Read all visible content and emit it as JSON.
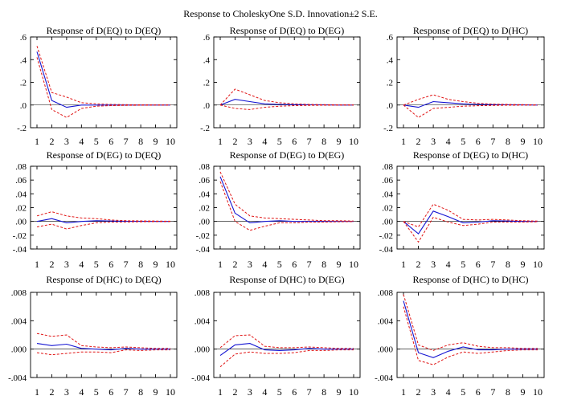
{
  "figure": {
    "title": "Response to CholeskyOne S.D. Innovation±2 S.E."
  },
  "colors": {
    "response": "#1414d2",
    "bands": "#e01414",
    "axis": "#000000",
    "background": "#ffffff"
  },
  "chart_data": [
    {
      "type": "line",
      "title": "Response of D(EQ) to D(EQ)",
      "x": [
        1,
        2,
        3,
        4,
        5,
        6,
        7,
        8,
        9,
        10
      ],
      "ylim": [
        -0.2,
        0.6
      ],
      "yticks": [
        -0.2,
        0.0,
        0.2,
        0.4,
        0.6
      ],
      "ytick_labels": [
        "-.2",
        ".0",
        ".2",
        ".4",
        ".6"
      ],
      "series": [
        {
          "role": "response",
          "values": [
            0.47,
            0.04,
            -0.02,
            0.0,
            0.0,
            0.0,
            0.0,
            0.0,
            0.0,
            0.0
          ]
        },
        {
          "role": "upper",
          "values": [
            0.52,
            0.11,
            0.07,
            0.02,
            0.01,
            0.005,
            0.003,
            0.002,
            0.001,
            0.001
          ]
        },
        {
          "role": "lower",
          "values": [
            0.42,
            -0.04,
            -0.11,
            -0.03,
            -0.01,
            -0.005,
            -0.003,
            -0.002,
            -0.001,
            -0.001
          ]
        }
      ]
    },
    {
      "type": "line",
      "title": "Response of D(EQ) to D(EG)",
      "x": [
        1,
        2,
        3,
        4,
        5,
        6,
        7,
        8,
        9,
        10
      ],
      "ylim": [
        -0.2,
        0.6
      ],
      "yticks": [
        -0.2,
        0.0,
        0.2,
        0.4,
        0.6
      ],
      "ytick_labels": [
        "-.2",
        ".0",
        ".2",
        ".4",
        ".6"
      ],
      "series": [
        {
          "role": "response",
          "values": [
            0.0,
            0.05,
            0.03,
            0.01,
            0.005,
            0.003,
            0.002,
            0.001,
            0.0,
            0.0
          ]
        },
        {
          "role": "upper",
          "values": [
            0.0,
            0.14,
            0.09,
            0.04,
            0.02,
            0.01,
            0.005,
            0.003,
            0.002,
            0.001
          ]
        },
        {
          "role": "lower",
          "values": [
            0.0,
            -0.03,
            -0.04,
            -0.02,
            -0.01,
            -0.005,
            -0.003,
            -0.002,
            -0.001,
            -0.001
          ]
        }
      ]
    },
    {
      "type": "line",
      "title": "Response of D(EQ) to D(HC)",
      "x": [
        1,
        2,
        3,
        4,
        5,
        6,
        7,
        8,
        9,
        10
      ],
      "ylim": [
        -0.2,
        0.6
      ],
      "yticks": [
        -0.2,
        0.0,
        0.2,
        0.4,
        0.6
      ],
      "ytick_labels": [
        "-.2",
        ".0",
        ".2",
        ".4",
        ".6"
      ],
      "series": [
        {
          "role": "response",
          "values": [
            0.0,
            -0.02,
            0.03,
            0.02,
            0.01,
            0.005,
            0.003,
            0.002,
            0.001,
            0.0
          ]
        },
        {
          "role": "upper",
          "values": [
            0.0,
            0.05,
            0.09,
            0.05,
            0.03,
            0.015,
            0.008,
            0.005,
            0.003,
            0.002
          ]
        },
        {
          "role": "lower",
          "values": [
            0.0,
            -0.11,
            -0.03,
            -0.02,
            -0.01,
            -0.006,
            -0.004,
            -0.002,
            -0.001,
            -0.001
          ]
        }
      ]
    },
    {
      "type": "line",
      "title": "Response of D(EG) to D(EQ)",
      "x": [
        1,
        2,
        3,
        4,
        5,
        6,
        7,
        8,
        9,
        10
      ],
      "ylim": [
        -0.04,
        0.08
      ],
      "yticks": [
        -0.04,
        -0.02,
        0.0,
        0.02,
        0.04,
        0.06,
        0.08
      ],
      "ytick_labels": [
        "-.04",
        "-.02",
        ".00",
        ".02",
        ".04",
        ".06",
        ".08"
      ],
      "series": [
        {
          "role": "response",
          "values": [
            0.0,
            0.004,
            -0.002,
            0.0,
            0.001,
            0.0005,
            0.0002,
            0.0001,
            0.0,
            0.0
          ]
        },
        {
          "role": "upper",
          "values": [
            0.008,
            0.014,
            0.008,
            0.005,
            0.004,
            0.002,
            0.001,
            0.0008,
            0.0005,
            0.0003
          ]
        },
        {
          "role": "lower",
          "values": [
            -0.008,
            -0.004,
            -0.011,
            -0.006,
            -0.002,
            -0.001,
            -0.0008,
            -0.0005,
            -0.0003,
            -0.0002
          ]
        }
      ]
    },
    {
      "type": "line",
      "title": "Response of D(EG) to D(EG)",
      "x": [
        1,
        2,
        3,
        4,
        5,
        6,
        7,
        8,
        9,
        10
      ],
      "ylim": [
        -0.04,
        0.08
      ],
      "yticks": [
        -0.04,
        -0.02,
        0.0,
        0.02,
        0.04,
        0.06,
        0.08
      ],
      "ytick_labels": [
        "-.04",
        "-.02",
        ".00",
        ".02",
        ".04",
        ".06",
        ".08"
      ],
      "series": [
        {
          "role": "response",
          "values": [
            0.065,
            0.012,
            -0.002,
            0.0,
            0.001,
            0.0,
            0.0,
            0.0,
            0.0,
            0.0
          ]
        },
        {
          "role": "upper",
          "values": [
            0.072,
            0.025,
            0.008,
            0.005,
            0.004,
            0.003,
            0.002,
            0.001,
            0.001,
            0.0005
          ]
        },
        {
          "role": "lower",
          "values": [
            0.058,
            0.0,
            -0.013,
            -0.007,
            -0.002,
            -0.002,
            -0.001,
            -0.001,
            -0.0005,
            -0.0003
          ]
        }
      ]
    },
    {
      "type": "line",
      "title": "Response of D(EG) to D(HC)",
      "x": [
        1,
        2,
        3,
        4,
        5,
        6,
        7,
        8,
        9,
        10
      ],
      "ylim": [
        -0.04,
        0.08
      ],
      "yticks": [
        -0.04,
        -0.02,
        0.0,
        0.02,
        0.04,
        0.06,
        0.08
      ],
      "ytick_labels": [
        "-.04",
        "-.02",
        ".00",
        ".02",
        ".04",
        ".06",
        ".08"
      ],
      "series": [
        {
          "role": "response",
          "values": [
            0.0,
            -0.018,
            0.015,
            0.007,
            -0.002,
            -0.001,
            0.001,
            0.0005,
            0.0,
            0.0
          ]
        },
        {
          "role": "upper",
          "values": [
            0.0,
            -0.008,
            0.025,
            0.016,
            0.003,
            0.002,
            0.003,
            0.002,
            0.001,
            0.0005
          ]
        },
        {
          "role": "lower",
          "values": [
            0.0,
            -0.03,
            0.006,
            -0.001,
            -0.006,
            -0.004,
            -0.001,
            -0.001,
            -0.001,
            -0.0005
          ]
        }
      ]
    },
    {
      "type": "line",
      "title": "Response of D(HC) to D(EQ)",
      "x": [
        1,
        2,
        3,
        4,
        5,
        6,
        7,
        8,
        9,
        10
      ],
      "ylim": [
        -0.004,
        0.008
      ],
      "yticks": [
        -0.004,
        0.0,
        0.004,
        0.008
      ],
      "ytick_labels": [
        "-.004",
        ".000",
        ".004",
        ".008"
      ],
      "series": [
        {
          "role": "response",
          "values": [
            0.0008,
            0.0005,
            0.0007,
            0.0001,
            0.0,
            -0.0001,
            0.0001,
            0.0,
            0.0,
            0.0
          ]
        },
        {
          "role": "upper",
          "values": [
            0.0022,
            0.0018,
            0.002,
            0.0005,
            0.0003,
            0.0002,
            0.0003,
            0.0002,
            0.0001,
            0.0001
          ]
        },
        {
          "role": "lower",
          "values": [
            -0.0005,
            -0.0008,
            -0.0006,
            -0.0004,
            -0.0004,
            -0.0005,
            -0.0001,
            -0.0002,
            -0.0001,
            -0.0001
          ]
        }
      ]
    },
    {
      "type": "line",
      "title": "Response of D(HC) to D(EG)",
      "x": [
        1,
        2,
        3,
        4,
        5,
        6,
        7,
        8,
        9,
        10
      ],
      "ylim": [
        -0.004,
        0.008
      ],
      "yticks": [
        -0.004,
        0.0,
        0.004,
        0.008
      ],
      "ytick_labels": [
        "-.004",
        ".000",
        ".004",
        ".008"
      ],
      "series": [
        {
          "role": "response",
          "values": [
            -0.0009,
            0.0006,
            0.0008,
            -0.0001,
            -0.0002,
            -0.0001,
            0.0001,
            0.0,
            0.0,
            0.0
          ]
        },
        {
          "role": "upper",
          "values": [
            0.0002,
            0.0019,
            0.002,
            0.0004,
            0.0002,
            0.0002,
            0.0003,
            0.0002,
            0.0001,
            0.0001
          ]
        },
        {
          "role": "lower",
          "values": [
            -0.0025,
            -0.0007,
            -0.0004,
            -0.0006,
            -0.0006,
            -0.0005,
            -0.0002,
            -0.0002,
            -0.0001,
            -0.0001
          ]
        }
      ]
    },
    {
      "type": "line",
      "title": "Response of D(HC) to D(HC)",
      "x": [
        1,
        2,
        3,
        4,
        5,
        6,
        7,
        8,
        9,
        10
      ],
      "ylim": [
        -0.004,
        0.008
      ],
      "yticks": [
        -0.004,
        0.0,
        0.004,
        0.008
      ],
      "ytick_labels": [
        "-.004",
        ".000",
        ".004",
        ".008"
      ],
      "series": [
        {
          "role": "response",
          "values": [
            0.0068,
            -0.0005,
            -0.0012,
            -0.0003,
            0.0003,
            -0.0001,
            -0.0001,
            0.0,
            0.0,
            0.0
          ]
        },
        {
          "role": "upper",
          "values": [
            0.0077,
            0.0006,
            -0.0002,
            0.0006,
            0.0009,
            0.0004,
            0.0002,
            0.0002,
            0.0001,
            0.0001
          ]
        },
        {
          "role": "lower",
          "values": [
            0.006,
            -0.0016,
            -0.0022,
            -0.0011,
            -0.0004,
            -0.0006,
            -0.0004,
            -0.0002,
            -0.0001,
            -0.0001
          ]
        }
      ]
    }
  ]
}
